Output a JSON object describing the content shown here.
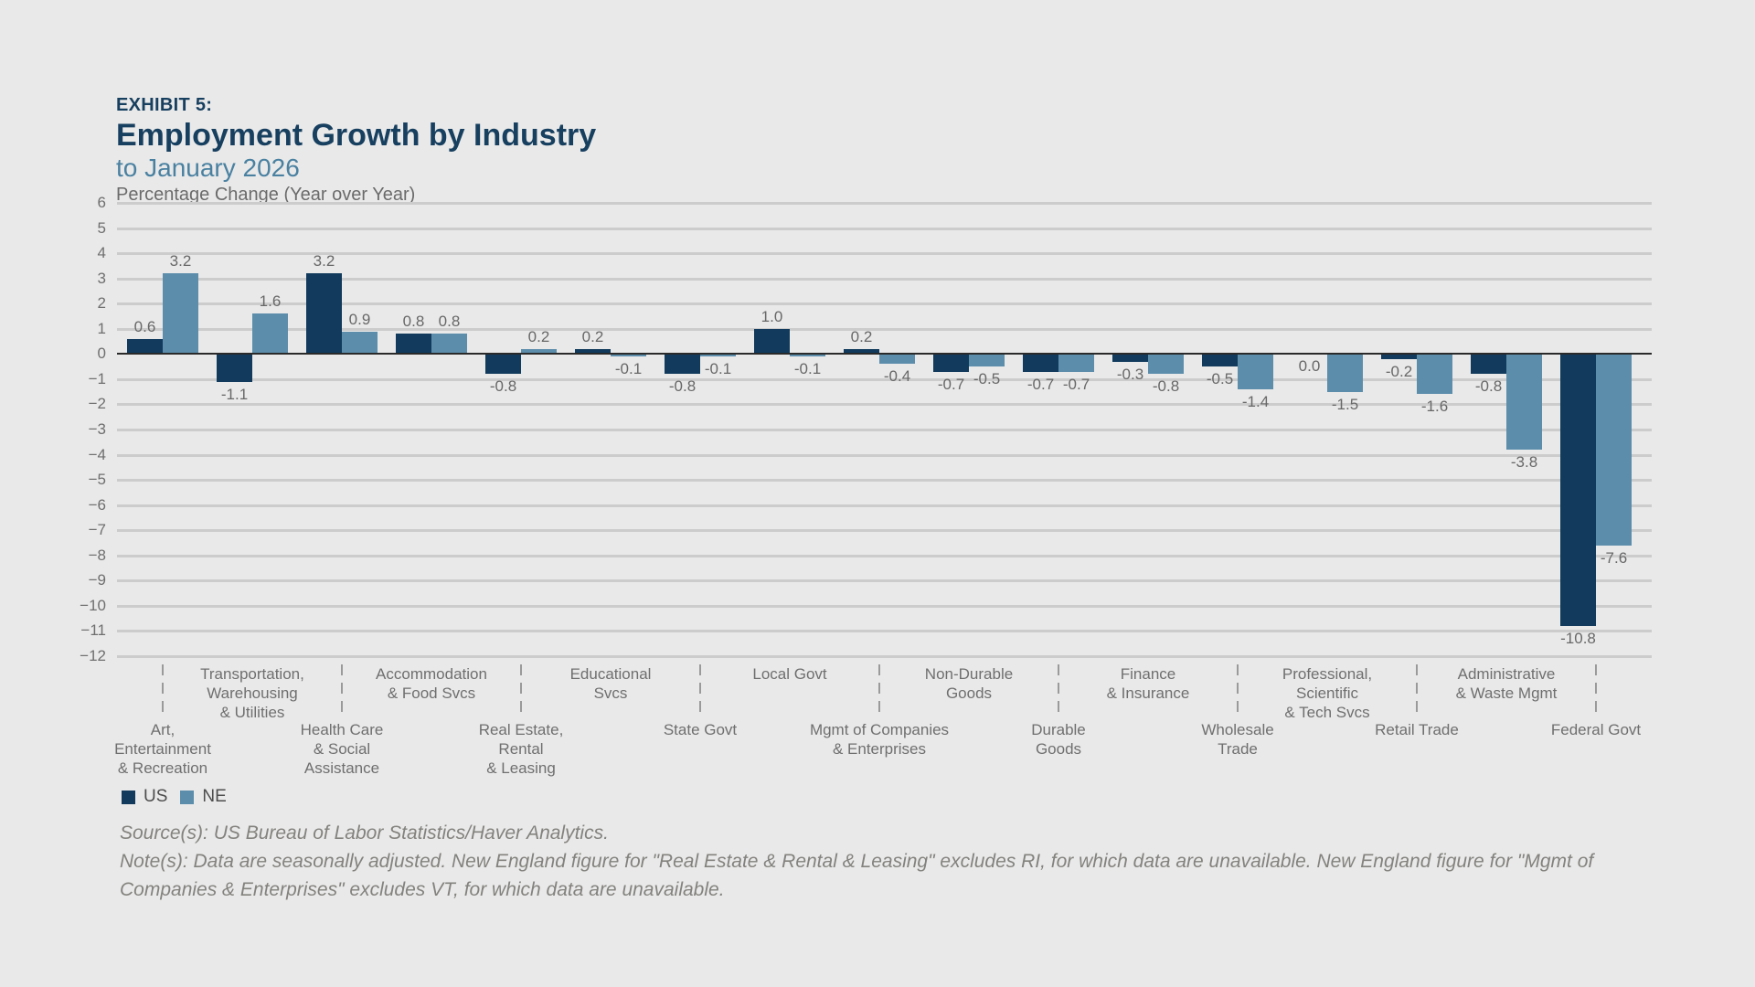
{
  "header": {
    "exhibit_label": "EXHIBIT 5:",
    "title": "Employment Growth by Industry",
    "subtitle": "to January 2026",
    "axis_note": "Percentage Change (Year over Year)"
  },
  "chart_data": {
    "type": "bar",
    "title": "Employment Growth by Industry",
    "subtitle": "to January 2026",
    "ylabel": "Percentage Change (Year over Year)",
    "ylim": [
      -12,
      6
    ],
    "ytick_step": 1,
    "grid": true,
    "legend_position": "bottom-left",
    "categories": [
      {
        "label": "Art, Entertainment & Recreation",
        "lines": [
          "Art,",
          "Entertainment",
          "& Recreation"
        ]
      },
      {
        "label": "Transportation, Warehousing & Utilities",
        "lines": [
          "Transportation,",
          "Warehousing",
          "& Utilities"
        ]
      },
      {
        "label": "Health Care & Social Assistance",
        "lines": [
          "Health Care",
          "& Social",
          "Assistance"
        ]
      },
      {
        "label": "Accommodation & Food Svcs",
        "lines": [
          "Accommodation",
          "& Food Svcs"
        ]
      },
      {
        "label": "Real Estate, Rental & Leasing",
        "lines": [
          "Real Estate,",
          "Rental",
          "& Leasing"
        ]
      },
      {
        "label": "Educational Svcs",
        "lines": [
          "Educational",
          "Svcs"
        ]
      },
      {
        "label": "State Govt",
        "lines": [
          "State Govt"
        ]
      },
      {
        "label": "Local Govt",
        "lines": [
          "Local Govt"
        ]
      },
      {
        "label": "Mgmt of Companies & Enterprises",
        "lines": [
          "Mgmt of Companies",
          "& Enterprises"
        ]
      },
      {
        "label": "Non-Durable Goods",
        "lines": [
          "Non-Durable",
          "Goods"
        ]
      },
      {
        "label": "Durable Goods",
        "lines": [
          "Durable",
          "Goods"
        ]
      },
      {
        "label": "Finance & Insurance",
        "lines": [
          "Finance",
          "& Insurance"
        ]
      },
      {
        "label": "Wholesale Trade",
        "lines": [
          "Wholesale",
          "Trade"
        ]
      },
      {
        "label": "Professional, Scientific & Tech Svcs",
        "lines": [
          "Professional,",
          "Scientific",
          "& Tech Svcs"
        ]
      },
      {
        "label": "Retail Trade",
        "lines": [
          "Retail Trade"
        ]
      },
      {
        "label": "Administrative & Waste Mgmt",
        "lines": [
          "Administrative",
          "& Waste Mgmt"
        ]
      },
      {
        "label": "Federal Govt",
        "lines": [
          "Federal Govt"
        ]
      }
    ],
    "series": [
      {
        "name": "US",
        "color": "#113a5c",
        "values": [
          0.6,
          -1.1,
          3.2,
          0.8,
          -0.8,
          0.2,
          -0.8,
          1.0,
          0.2,
          -0.7,
          -0.7,
          -0.3,
          -0.5,
          0.0,
          -0.2,
          -0.8,
          -10.8
        ]
      },
      {
        "name": "NE",
        "color": "#5c8dab",
        "values": [
          3.2,
          1.6,
          0.9,
          0.8,
          0.2,
          -0.1,
          -0.1,
          -0.1,
          -0.4,
          -0.5,
          -0.7,
          -0.8,
          -1.4,
          -1.5,
          -1.6,
          -3.8,
          -7.6
        ]
      }
    ]
  },
  "legend": {
    "items": [
      {
        "label": "US",
        "color": "#113a5c"
      },
      {
        "label": "NE",
        "color": "#5c8dab"
      }
    ]
  },
  "footer": {
    "source": "Source(s): US Bureau of Labor Statistics/Haver Analytics.",
    "note": "Note(s): Data are seasonally adjusted. New England figure for \"Real Estate & Rental & Leasing\" excludes RI, for which data are unavailable. New England figure for \"Mgmt of Companies & Enterprises\" excludes VT, for which data are unavailable."
  }
}
